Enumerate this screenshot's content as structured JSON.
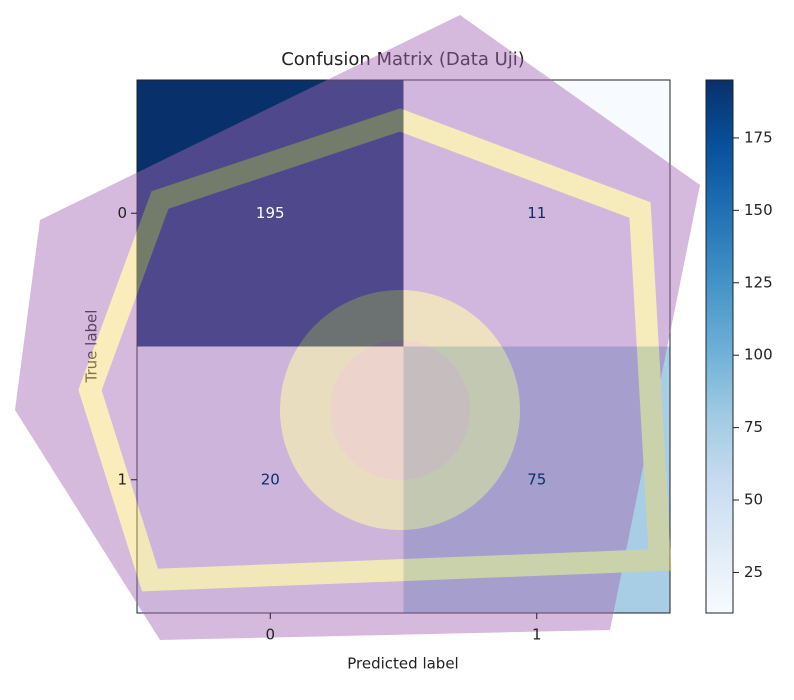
{
  "chart_data": {
    "type": "heatmap",
    "title": "Confusion Matrix (Data Uji)",
    "xlabel": "Predicted label",
    "ylabel": "True label",
    "x_categories": [
      "0",
      "1"
    ],
    "y_categories": [
      "0",
      "1"
    ],
    "values": [
      [
        195,
        11
      ],
      [
        20,
        75
      ]
    ],
    "colormap": "Blues",
    "clim": [
      11,
      195
    ],
    "cticks": [
      25,
      50,
      75,
      100,
      125,
      150,
      175
    ]
  }
}
